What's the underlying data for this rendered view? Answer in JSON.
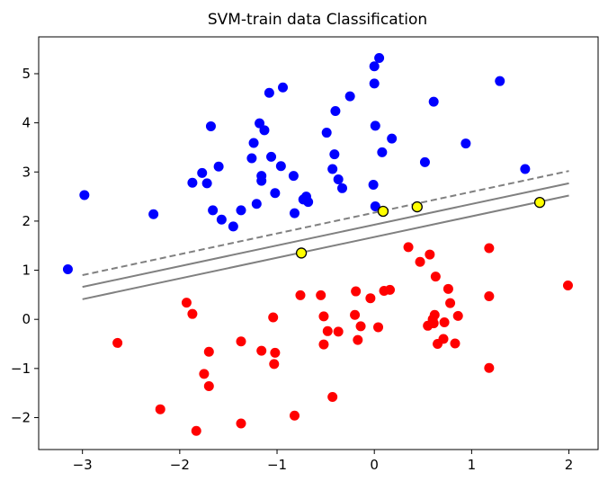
{
  "chart_data": {
    "type": "scatter",
    "title": "SVM-train data Classification",
    "xlabel": "",
    "ylabel": "",
    "xlim": [
      -3.45,
      2.3
    ],
    "ylim": [
      -2.65,
      5.75
    ],
    "xticks": [
      -3,
      -2,
      -1,
      0,
      1,
      2
    ],
    "yticks": [
      -2,
      -1,
      0,
      1,
      2,
      3,
      4,
      5
    ],
    "grid": false,
    "colors": {
      "class_blue": "#0000ff",
      "class_red": "#ff0000",
      "support_vector": "#ffff00",
      "boundary_line": "#808080",
      "margin_line": "#808080"
    },
    "series": [
      {
        "color": "#0000ff",
        "points": [
          [
            -3.15,
            1.02
          ],
          [
            -2.98,
            2.53
          ],
          [
            -2.27,
            2.14
          ],
          [
            -1.87,
            2.78
          ],
          [
            -1.77,
            2.98
          ],
          [
            -1.72,
            2.77
          ],
          [
            -1.68,
            3.93
          ],
          [
            -1.66,
            2.22
          ],
          [
            -1.6,
            3.11
          ],
          [
            -1.57,
            2.03
          ],
          [
            -1.45,
            1.89
          ],
          [
            -1.37,
            2.22
          ],
          [
            -1.26,
            3.28
          ],
          [
            -1.24,
            3.59
          ],
          [
            -1.21,
            2.35
          ],
          [
            -1.18,
            3.99
          ],
          [
            -1.16,
            2.92
          ],
          [
            -1.16,
            2.82
          ],
          [
            -1.13,
            3.85
          ],
          [
            -1.08,
            4.61
          ],
          [
            -1.06,
            3.31
          ],
          [
            -1.02,
            2.57
          ],
          [
            -0.96,
            3.12
          ],
          [
            -0.94,
            4.72
          ],
          [
            -0.83,
            2.92
          ],
          [
            -0.82,
            2.16
          ],
          [
            -0.73,
            2.44
          ],
          [
            -0.7,
            2.5
          ],
          [
            -0.68,
            2.39
          ],
          [
            -0.49,
            3.8
          ],
          [
            -0.43,
            3.06
          ],
          [
            -0.41,
            3.36
          ],
          [
            -0.4,
            4.24
          ],
          [
            -0.37,
            2.85
          ],
          [
            -0.33,
            2.67
          ],
          [
            -0.25,
            4.54
          ],
          [
            -0.01,
            2.74
          ],
          [
            0.0,
            5.15
          ],
          [
            0.0,
            4.8
          ],
          [
            0.01,
            3.94
          ],
          [
            0.01,
            2.3
          ],
          [
            0.05,
            5.32
          ],
          [
            0.08,
            3.4
          ],
          [
            0.18,
            3.68
          ],
          [
            0.52,
            3.2
          ],
          [
            0.61,
            4.43
          ],
          [
            0.94,
            3.58
          ],
          [
            1.29,
            4.85
          ],
          [
            1.55,
            3.06
          ]
        ]
      },
      {
        "color": "#ff0000",
        "points": [
          [
            -2.64,
            -0.48
          ],
          [
            -2.2,
            -1.83
          ],
          [
            -1.93,
            0.34
          ],
          [
            -1.87,
            0.11
          ],
          [
            -1.83,
            -2.27
          ],
          [
            -1.75,
            -1.11
          ],
          [
            -1.7,
            -0.66
          ],
          [
            -1.7,
            -1.36
          ],
          [
            -1.37,
            -0.45
          ],
          [
            -1.37,
            -2.12
          ],
          [
            -1.16,
            -0.64
          ],
          [
            -1.04,
            0.04
          ],
          [
            -1.03,
            -0.91
          ],
          [
            -1.02,
            -0.68
          ],
          [
            -0.82,
            -1.96
          ],
          [
            -0.76,
            0.49
          ],
          [
            -0.55,
            0.49
          ],
          [
            -0.52,
            0.06
          ],
          [
            -0.52,
            -0.51
          ],
          [
            -0.48,
            -0.24
          ],
          [
            -0.43,
            -1.58
          ],
          [
            -0.37,
            -0.25
          ],
          [
            -0.2,
            0.09
          ],
          [
            -0.19,
            0.57
          ],
          [
            -0.17,
            -0.42
          ],
          [
            -0.14,
            -0.14
          ],
          [
            -0.04,
            0.43
          ],
          [
            0.04,
            -0.16
          ],
          [
            0.1,
            0.58
          ],
          [
            0.16,
            0.6
          ],
          [
            0.35,
            1.47
          ],
          [
            0.47,
            1.17
          ],
          [
            0.55,
            -0.13
          ],
          [
            0.57,
            1.32
          ],
          [
            0.6,
            0.0
          ],
          [
            0.61,
            -0.08
          ],
          [
            0.62,
            0.09
          ],
          [
            0.63,
            0.87
          ],
          [
            0.65,
            -0.5
          ],
          [
            0.71,
            -0.4
          ],
          [
            0.72,
            -0.06
          ],
          [
            0.76,
            0.62
          ],
          [
            0.78,
            0.33
          ],
          [
            0.83,
            -0.49
          ],
          [
            0.86,
            0.07
          ],
          [
            1.18,
            1.45
          ],
          [
            1.18,
            0.47
          ],
          [
            1.18,
            -0.99
          ],
          [
            1.99,
            0.69
          ]
        ]
      }
    ],
    "support_vectors": [
      [
        -0.75,
        1.35
      ],
      [
        0.09,
        2.2
      ],
      [
        0.44,
        2.29
      ],
      [
        1.7,
        2.38
      ]
    ],
    "lines": [
      {
        "style": "dashed",
        "x": [
          -3.0,
          2.0
        ],
        "y": [
          0.9,
          3.02
        ]
      },
      {
        "style": "solid",
        "x": [
          -3.0,
          2.0
        ],
        "y": [
          0.66,
          2.77
        ]
      },
      {
        "style": "solid",
        "x": [
          -3.0,
          2.0
        ],
        "y": [
          0.41,
          2.52
        ]
      }
    ]
  }
}
